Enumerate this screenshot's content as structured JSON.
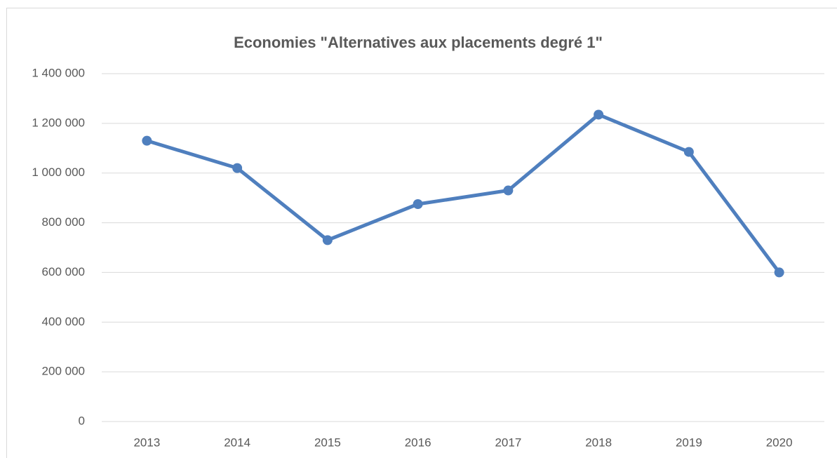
{
  "chart_data": {
    "type": "line",
    "title": "Economies \"Alternatives aux placements degré 1\"",
    "categories": [
      "2013",
      "2014",
      "2015",
      "2016",
      "2017",
      "2018",
      "2019",
      "2020"
    ],
    "series": [
      {
        "name": "Economies",
        "color": "#4f7fbe",
        "values": [
          1130000,
          1020000,
          730000,
          875000,
          930000,
          1235000,
          1085000,
          600000
        ]
      }
    ],
    "ylim": [
      0,
      1400000
    ],
    "yticks": [
      0,
      {
        "value": 200000,
        "label": "200 000"
      },
      {
        "value": 400000,
        "label": "400 000"
      },
      {
        "value": 600000,
        "label": "600 000"
      },
      {
        "value": 800000,
        "label": "800 000"
      },
      {
        "value": 1000000,
        "label": "1 000 000"
      },
      {
        "value": 1200000,
        "label": "1 200 000"
      },
      {
        "value": 1400000,
        "label": "1 400 000"
      }
    ],
    "grid": true
  }
}
